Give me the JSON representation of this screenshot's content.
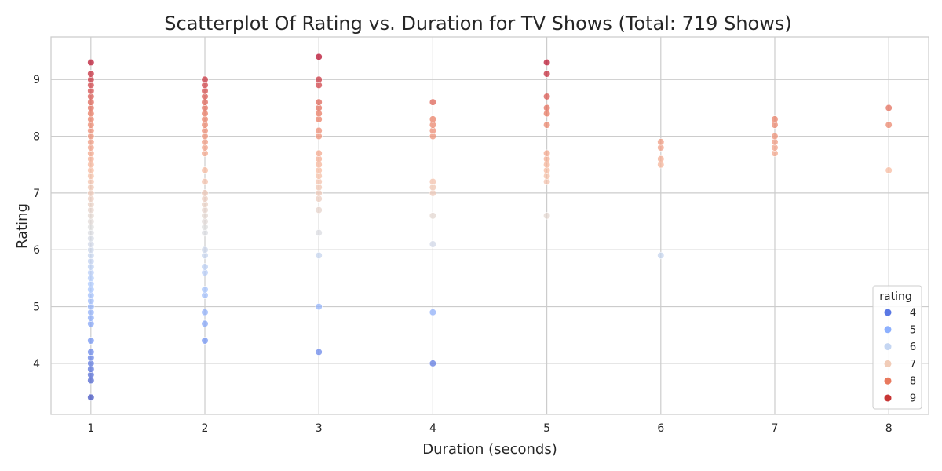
{
  "chart_data": {
    "type": "scatter",
    "title": "Scatterplot Of Rating vs. Duration for TV Shows (Total: 719 Shows)",
    "xlabel": "Duration (seconds)",
    "ylabel": "Rating",
    "xlim": [
      0.65,
      8.35
    ],
    "ylim": [
      3.1,
      9.75
    ],
    "xticks": [
      1,
      2,
      3,
      4,
      5,
      6,
      7,
      8
    ],
    "yticks": [
      4,
      5,
      6,
      7,
      8,
      9
    ],
    "grid": true,
    "hue": "rating",
    "colormap": {
      "name": "coolwarm",
      "vmin": 3.4,
      "vmax": 9.4,
      "stops": [
        "#3b4cc0",
        "#6f92f3",
        "#aac7fd",
        "#dddcdc",
        "#f7b89c",
        "#e7745b",
        "#b40426"
      ]
    },
    "legend": {
      "title": "rating",
      "placement": "lower-right",
      "entries": [
        {
          "label": "4",
          "color": "#5a78e4"
        },
        {
          "label": "5",
          "color": "#8db0fe"
        },
        {
          "label": "6",
          "color": "#c5d6f2"
        },
        {
          "label": "7",
          "color": "#f1ccb8"
        },
        {
          "label": "8",
          "color": "#e8795e"
        },
        {
          "label": "9",
          "color": "#c73635"
        }
      ]
    },
    "series": [
      {
        "x": 1,
        "y": [
          3.4,
          3.7,
          3.8,
          3.9,
          4.0,
          4.1,
          4.2,
          4.4,
          4.7,
          4.8,
          4.9,
          5.0,
          5.1,
          5.2,
          5.3,
          5.4,
          5.5,
          5.6,
          5.7,
          5.8,
          5.9,
          6.0,
          6.1,
          6.2,
          6.3,
          6.4,
          6.5,
          6.6,
          6.7,
          6.8,
          6.9,
          7.0,
          7.1,
          7.2,
          7.3,
          7.4,
          7.5,
          7.6,
          7.7,
          7.8,
          7.9,
          8.0,
          8.1,
          8.2,
          8.3,
          8.4,
          8.5,
          8.6,
          8.7,
          8.8,
          8.9,
          9.0,
          9.1,
          9.3
        ]
      },
      {
        "x": 2,
        "y": [
          4.4,
          4.7,
          4.9,
          5.2,
          5.3,
          5.6,
          5.7,
          5.9,
          6.0,
          6.3,
          6.4,
          6.5,
          6.6,
          6.7,
          6.8,
          6.9,
          7.0,
          7.2,
          7.4,
          7.7,
          7.8,
          7.9,
          8.0,
          8.1,
          8.2,
          8.3,
          8.4,
          8.5,
          8.6,
          8.7,
          8.8,
          8.9,
          9.0
        ]
      },
      {
        "x": 3,
        "y": [
          4.2,
          5.0,
          5.9,
          6.3,
          6.7,
          6.9,
          7.0,
          7.1,
          7.2,
          7.3,
          7.4,
          7.5,
          7.6,
          7.7,
          8.0,
          8.1,
          8.3,
          8.4,
          8.5,
          8.6,
          8.9,
          9.0,
          9.4
        ]
      },
      {
        "x": 4,
        "y": [
          4.0,
          4.9,
          6.1,
          6.6,
          7.0,
          7.1,
          7.2,
          8.0,
          8.1,
          8.2,
          8.3,
          8.6
        ]
      },
      {
        "x": 5,
        "y": [
          6.6,
          7.2,
          7.3,
          7.4,
          7.5,
          7.6,
          7.7,
          8.2,
          8.4,
          8.5,
          8.7,
          9.1,
          9.3
        ]
      },
      {
        "x": 6,
        "y": [
          5.9,
          7.5,
          7.6,
          7.8,
          7.9
        ]
      },
      {
        "x": 7,
        "y": [
          7.7,
          7.8,
          7.9,
          8.0,
          8.2,
          8.3
        ]
      },
      {
        "x": 8,
        "y": [
          7.4,
          8.2,
          8.5
        ]
      }
    ]
  }
}
